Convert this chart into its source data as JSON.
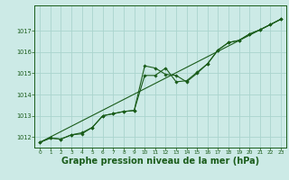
{
  "bg_color": "#cceae6",
  "grid_color": "#aad4ce",
  "line_color": "#1a5c1a",
  "marker_color": "#1a5c1a",
  "xlabel": "Graphe pression niveau de la mer (hPa)",
  "xlabel_fontsize": 7,
  "xlim": [
    -0.5,
    23.5
  ],
  "ylim": [
    1011.5,
    1018.2
  ],
  "yticks": [
    1012,
    1013,
    1014,
    1015,
    1016,
    1017
  ],
  "xticks": [
    0,
    1,
    2,
    3,
    4,
    5,
    6,
    7,
    8,
    9,
    10,
    11,
    12,
    13,
    14,
    15,
    16,
    17,
    18,
    19,
    20,
    21,
    22,
    23
  ],
  "series1_x": [
    0,
    1,
    2,
    3,
    4,
    5,
    6,
    7,
    8,
    9,
    10,
    11,
    12,
    13,
    14,
    15,
    16,
    17,
    18,
    19,
    20,
    21,
    22,
    23
  ],
  "series1_y": [
    1011.75,
    1011.95,
    1011.9,
    1012.1,
    1012.15,
    1012.45,
    1013.0,
    1013.1,
    1013.2,
    1013.25,
    1015.35,
    1015.25,
    1014.95,
    1014.9,
    1014.6,
    1015.0,
    1015.45,
    1016.1,
    1016.45,
    1016.55,
    1016.85,
    1017.05,
    1017.3,
    1017.55
  ],
  "series2_x": [
    0,
    1,
    2,
    3,
    4,
    5,
    6,
    7,
    8,
    9,
    10,
    11,
    12,
    13,
    14,
    15,
    16,
    17,
    18,
    19,
    20,
    21,
    22,
    23
  ],
  "series2_y": [
    1011.75,
    1011.95,
    1011.9,
    1012.1,
    1012.2,
    1012.45,
    1013.0,
    1013.1,
    1013.2,
    1013.25,
    1014.9,
    1014.9,
    1015.25,
    1014.6,
    1014.65,
    1015.05,
    1015.45,
    1016.1,
    1016.45,
    1016.55,
    1016.85,
    1017.05,
    1017.3,
    1017.55
  ],
  "series3_x": [
    0,
    23
  ],
  "series3_y": [
    1011.75,
    1017.55
  ]
}
